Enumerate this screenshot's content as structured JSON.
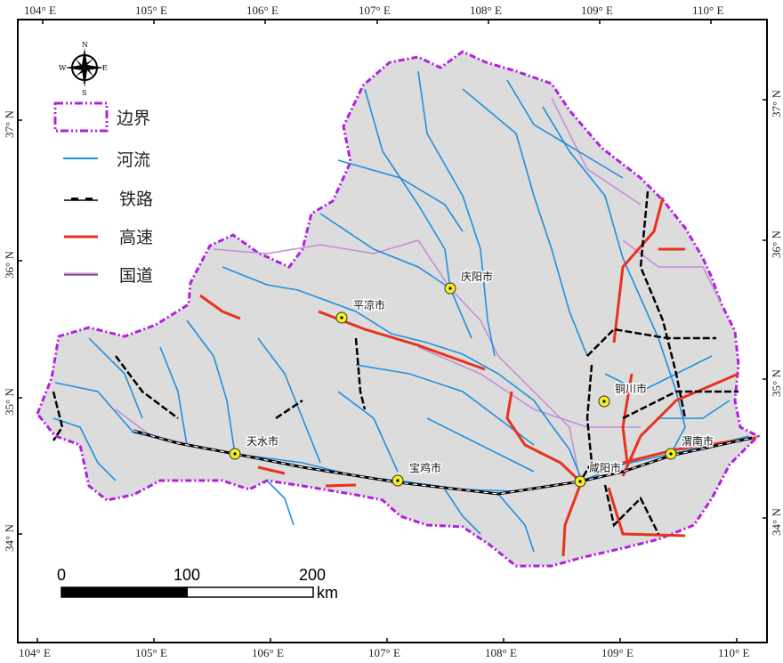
{
  "map": {
    "colors": {
      "boundary": "#b31fe0",
      "river": "#1f8fe0",
      "railway": "#000000",
      "highway": "#e8321c",
      "national_road": "#c48ad8",
      "land": "#dcdcdc",
      "city_marker": "#f5ef1a"
    },
    "lon_ticks": [
      "104° E",
      "105° E",
      "106° E",
      "107° E",
      "108° E",
      "109° E",
      "110° E"
    ],
    "lat_ticks": [
      "37° N",
      "36° N",
      "35° N",
      "34° N"
    ],
    "compass": {
      "n": "N",
      "s": "S",
      "e": "E",
      "w": "W"
    },
    "legend": [
      {
        "label": "边界",
        "symbol": "boundary"
      },
      {
        "label": "河流",
        "symbol": "river"
      },
      {
        "label": "铁路",
        "symbol": "railway"
      },
      {
        "label": "高速",
        "symbol": "highway"
      },
      {
        "label": "国道",
        "symbol": "national_road"
      }
    ],
    "cities": [
      {
        "name": "庆阳市"
      },
      {
        "name": "平凉市"
      },
      {
        "name": "天水市"
      },
      {
        "name": "宝鸡市"
      },
      {
        "name": "咸阳市"
      },
      {
        "name": "铜川市"
      },
      {
        "name": "渭南市"
      }
    ],
    "scale_bar": {
      "labels": [
        "0",
        "100",
        "200"
      ],
      "unit": "km"
    }
  }
}
